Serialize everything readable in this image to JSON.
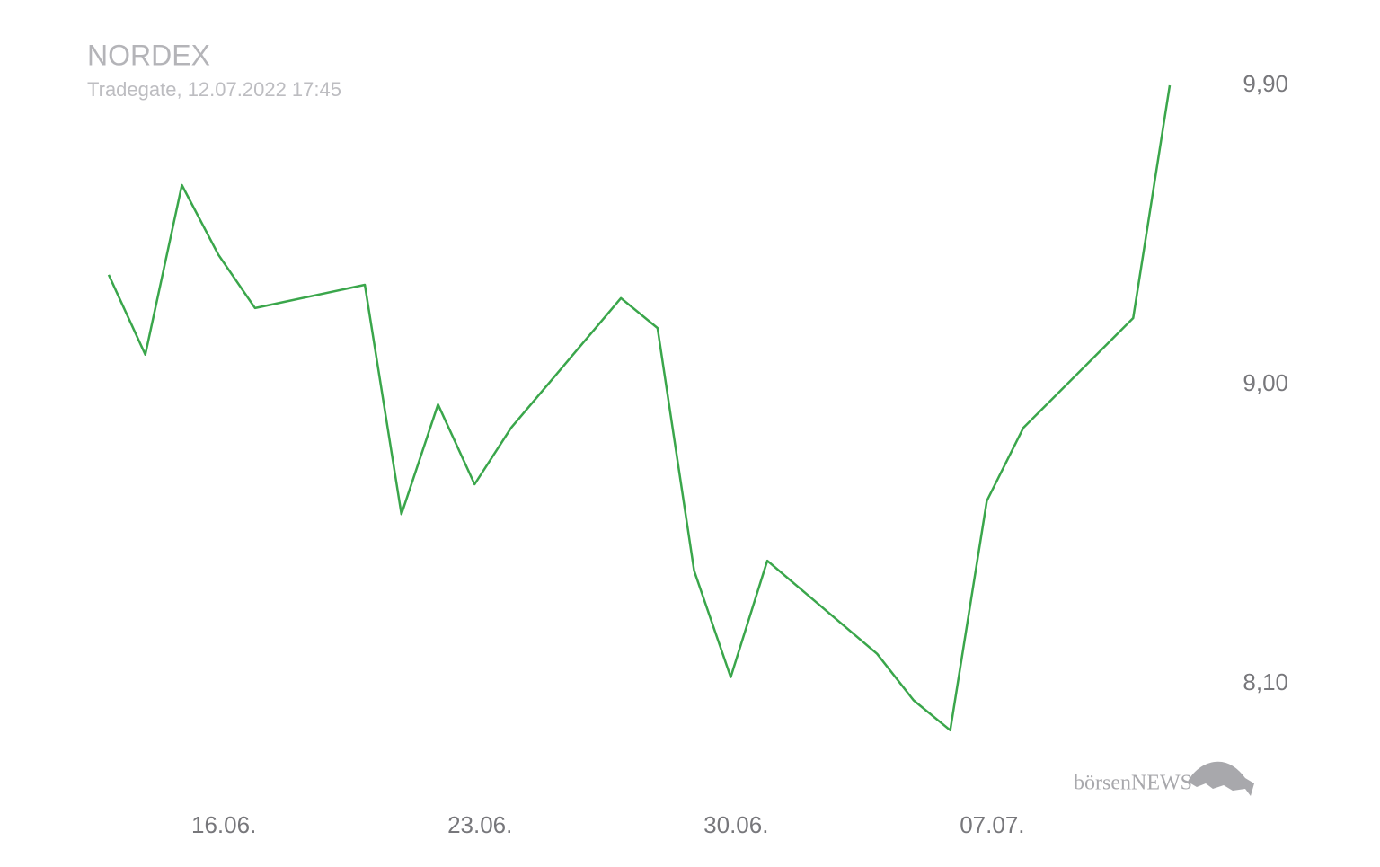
{
  "chart_data": {
    "type": "line",
    "title": "NORDEX",
    "subtitle": "Tradegate, 12.07.2022 17:45",
    "logo": "börsenNEWS",
    "x": [
      "13.06.",
      "14.06.",
      "15.06.",
      "16.06.",
      "17.06.",
      "20.06.",
      "21.06.",
      "22.06.",
      "23.06.",
      "24.06.",
      "27.06.",
      "28.06.",
      "29.06.",
      "30.06.",
      "01.07.",
      "04.07.",
      "05.07.",
      "06.07.",
      "07.07.",
      "08.07.",
      "11.07.",
      "12.07."
    ],
    "series": [
      {
        "color": "#3aa64b",
        "values": [
          9.33,
          9.09,
          9.6,
          9.39,
          9.23,
          9.3,
          8.61,
          8.94,
          8.7,
          8.87,
          9.26,
          9.17,
          8.44,
          8.12,
          8.47,
          8.19,
          8.05,
          7.96,
          8.65,
          8.87,
          9.2,
          9.9
        ]
      }
    ],
    "xlim": [
      "13.06.",
      "12.07."
    ],
    "xticks": [
      "16.06.",
      "23.06.",
      "30.06.",
      "07.07."
    ],
    "ylim": [
      7.85,
      10.1
    ],
    "yticks": [
      {
        "value": 8.1,
        "label": "8,10"
      },
      {
        "value": 9.0,
        "label": "9,00"
      },
      {
        "value": 9.9,
        "label": "9,90"
      }
    ],
    "grid": false
  }
}
